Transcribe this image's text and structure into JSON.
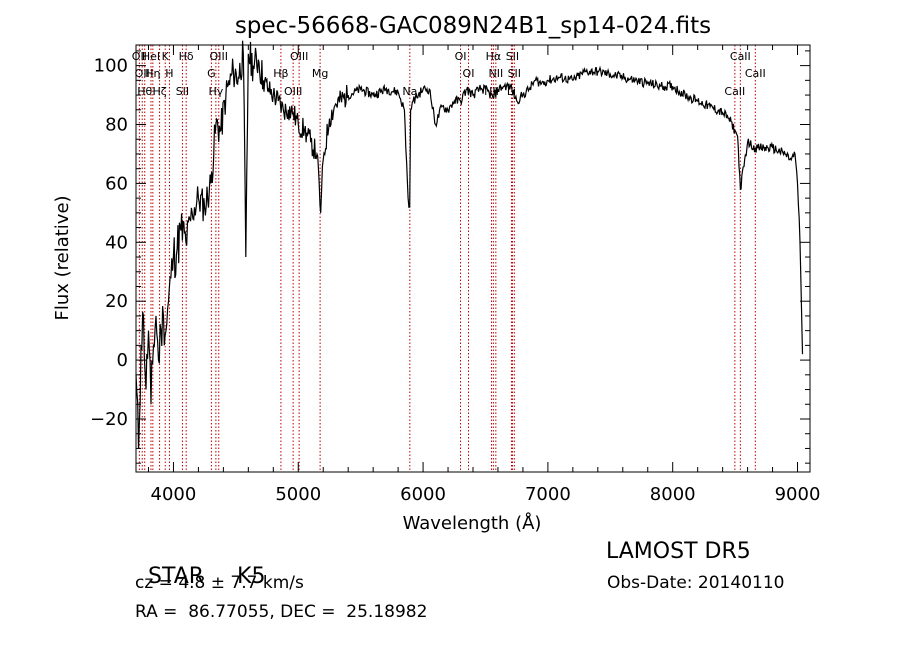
{
  "chart_data": {
    "type": "line",
    "title": "spec-56668-GAC089N24B1_sp14-024.fits",
    "xlabel": "Wavelength (Å)",
    "ylabel": "Flux (relative)",
    "xlim": [
      3700,
      9100
    ],
    "ylim": [
      -38,
      107
    ],
    "xticks": [
      4000,
      5000,
      6000,
      7000,
      8000,
      9000
    ],
    "yticks": [
      -20,
      0,
      20,
      40,
      60,
      80,
      100
    ],
    "grid": false,
    "line_color": "#000000",
    "marker_color": "#c00000",
    "series": [
      {
        "x": [
          3700,
          3720,
          3740,
          3760,
          3780,
          3800,
          3820,
          3840,
          3860,
          3880,
          3900,
          3920,
          3940,
          3960,
          3980,
          4000,
          4030,
          4060,
          4100,
          4150,
          4200,
          4250,
          4300,
          4340,
          4380,
          4420,
          4480,
          4520,
          4560,
          4580,
          4600,
          4640,
          4680,
          4720,
          4760,
          4800,
          4840,
          4880,
          4920,
          4960,
          5000,
          5050,
          5100,
          5150,
          5180,
          5200,
          5250,
          5300,
          5400,
          5500,
          5600,
          5700,
          5800,
          5850,
          5880,
          5893,
          5900,
          5920,
          6000,
          6050,
          6100,
          6150,
          6200,
          6250,
          6300,
          6350,
          6400,
          6450,
          6500,
          6560,
          6600,
          6650,
          6700,
          6750,
          6800,
          6850,
          6900,
          6950,
          7000,
          7100,
          7200,
          7300,
          7400,
          7500,
          7600,
          7700,
          7800,
          7900,
          8000,
          8100,
          8200,
          8300,
          8400,
          8450,
          8498,
          8520,
          8542,
          8600,
          8662,
          8700,
          8800,
          8900,
          8950,
          8980,
          9000,
          9020,
          9040
        ],
        "y": [
          -5,
          -30,
          5,
          15,
          -10,
          10,
          -15,
          5,
          15,
          0,
          10,
          15,
          10,
          20,
          28,
          35,
          38,
          44,
          40,
          50,
          55,
          52,
          60,
          80,
          78,
          90,
          98,
          96,
          104,
          35,
          104,
          100,
          102,
          95,
          92,
          90,
          88,
          85,
          85,
          84,
          80,
          78,
          74,
          70,
          50,
          68,
          82,
          87,
          90,
          92,
          90,
          92,
          91,
          85,
          55,
          52,
          85,
          88,
          92,
          92,
          80,
          86,
          85,
          88,
          88,
          92,
          90,
          92,
          92,
          89,
          92,
          93,
          93,
          88,
          90,
          92,
          95,
          94,
          95,
          96,
          95,
          98,
          98,
          97,
          96,
          95,
          94,
          93,
          93,
          90,
          88,
          86,
          84,
          82,
          78,
          76,
          58,
          74,
          72,
          72,
          72,
          70,
          68,
          70,
          60,
          40,
          2
        ]
      }
    ],
    "line_markers": [
      {
        "x": 3727,
        "label": "OII"
      },
      {
        "x": 3750,
        "label": "OII"
      },
      {
        "x": 3770,
        "label": "Hθ"
      },
      {
        "x": 3820,
        "label": "HeI"
      },
      {
        "x": 3835,
        "label": "Hη"
      },
      {
        "x": 3889,
        "label": "Hζ"
      },
      {
        "x": 3934,
        "label": "K"
      },
      {
        "x": 3968,
        "label": "H"
      },
      {
        "x": 4072,
        "label": "SII"
      },
      {
        "x": 4102,
        "label": "Hδ"
      },
      {
        "x": 4304,
        "label": "G"
      },
      {
        "x": 4340,
        "label": "Hγ"
      },
      {
        "x": 4363,
        "label": "OIII"
      },
      {
        "x": 4861,
        "label": "Hβ"
      },
      {
        "x": 4959,
        "label": "OIII"
      },
      {
        "x": 5007,
        "label": "OIII"
      },
      {
        "x": 5175,
        "label": "Mg"
      },
      {
        "x": 5894,
        "label": "Na"
      },
      {
        "x": 6300,
        "label": "OI"
      },
      {
        "x": 6364,
        "label": "OI"
      },
      {
        "x": 6548,
        "label": "NII"
      },
      {
        "x": 6563,
        "label": "Hα"
      },
      {
        "x": 6583,
        "label": "NII"
      },
      {
        "x": 6708,
        "label": "Li"
      },
      {
        "x": 6716,
        "label": "SII"
      },
      {
        "x": 6731,
        "label": "SII"
      },
      {
        "x": 8498,
        "label": "CaII"
      },
      {
        "x": 8542,
        "label": "CaII"
      },
      {
        "x": 8662,
        "label": "CaII"
      }
    ]
  },
  "footer": {
    "class_label": "STAR",
    "subclass": "K5",
    "redshift_text": "cz = 4.8 ± 7.7 km/s",
    "coords_text": "RA =  86.77055, DEC =  25.18982",
    "survey": "LAMOST DR5",
    "obs_date": "Obs-Date: 20140110"
  }
}
